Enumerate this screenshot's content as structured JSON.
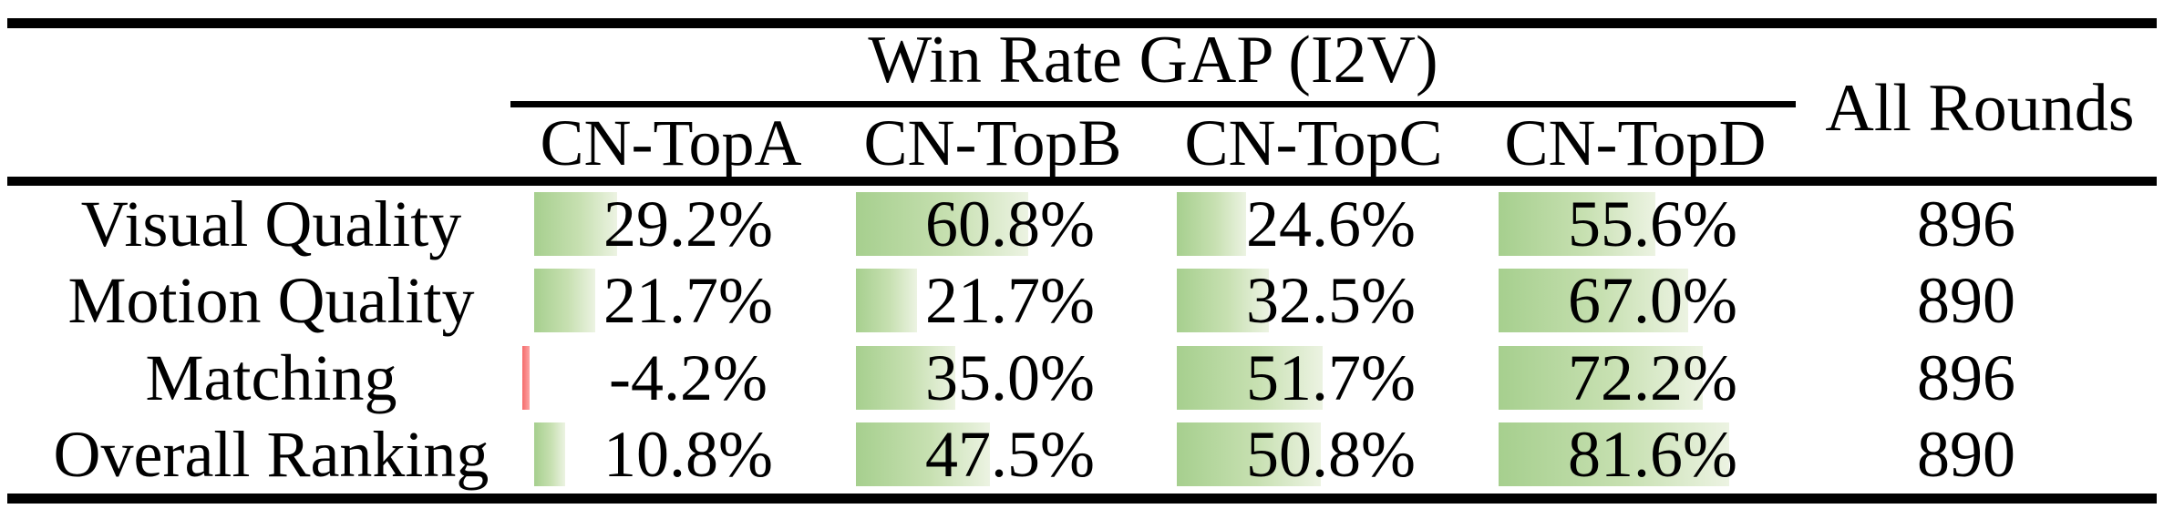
{
  "title": "Win Rate GAP (I2V) results table",
  "colors": {
    "background": "#ffffff",
    "text": "#000000",
    "rule": "#000000",
    "bar_positive_start": "#a6cf8e",
    "bar_positive_end": "#ecf3e2",
    "bar_negative_start": "#f56b6b",
    "bar_negative_end": "#fca4a4"
  },
  "table": {
    "group_header": "Win Rate GAP (I2V)",
    "all_rounds_header": "All Rounds",
    "columns": [
      "CN-TopA",
      "CN-TopB",
      "CN-TopC",
      "CN-TopD"
    ],
    "rows": [
      {
        "label": "Visual Quality",
        "values": [
          "29.2%",
          "60.8%",
          "24.6%",
          "55.6%"
        ],
        "bar_values": [
          29.2,
          60.8,
          24.6,
          55.6
        ],
        "all_rounds": "896"
      },
      {
        "label": "Motion Quality",
        "values": [
          "21.7%",
          "21.7%",
          "32.5%",
          "67.0%"
        ],
        "bar_values": [
          21.7,
          21.7,
          32.5,
          67.0
        ],
        "all_rounds": "890"
      },
      {
        "label": "Matching",
        "values": [
          "-4.2%",
          "35.0%",
          "51.7%",
          "72.2%"
        ],
        "bar_values": [
          -4.2,
          35.0,
          51.7,
          72.2
        ],
        "all_rounds": "896"
      },
      {
        "label": "Overall Ranking",
        "values": [
          "10.8%",
          "47.5%",
          "50.8%",
          "81.6%"
        ],
        "bar_values": [
          10.8,
          47.5,
          50.8,
          81.6
        ],
        "all_rounds": "890"
      }
    ]
  },
  "chart_data": {
    "type": "table",
    "title": "Win Rate GAP (I2V)",
    "columns": [
      "CN-TopA",
      "CN-TopB",
      "CN-TopC",
      "CN-TopD",
      "All Rounds"
    ],
    "row_labels": [
      "Visual Quality",
      "Motion Quality",
      "Matching",
      "Overall Ranking"
    ],
    "win_rate_gap_percent": {
      "Visual Quality": [
        29.2,
        60.8,
        24.6,
        55.6
      ],
      "Motion Quality": [
        21.7,
        21.7,
        32.5,
        67.0
      ],
      "Matching": [
        -4.2,
        35.0,
        51.7,
        72.2
      ],
      "Overall Ranking": [
        10.8,
        47.5,
        50.8,
        81.6
      ]
    },
    "all_rounds": [
      896,
      890,
      896,
      890
    ],
    "layout_hints": "in-cell green gradient data bars proportional to percentage; negative value drawn as thin red bar; thick black rules at top, below headers, and bottom; mid rule spans only the four CN-Top columns"
  }
}
